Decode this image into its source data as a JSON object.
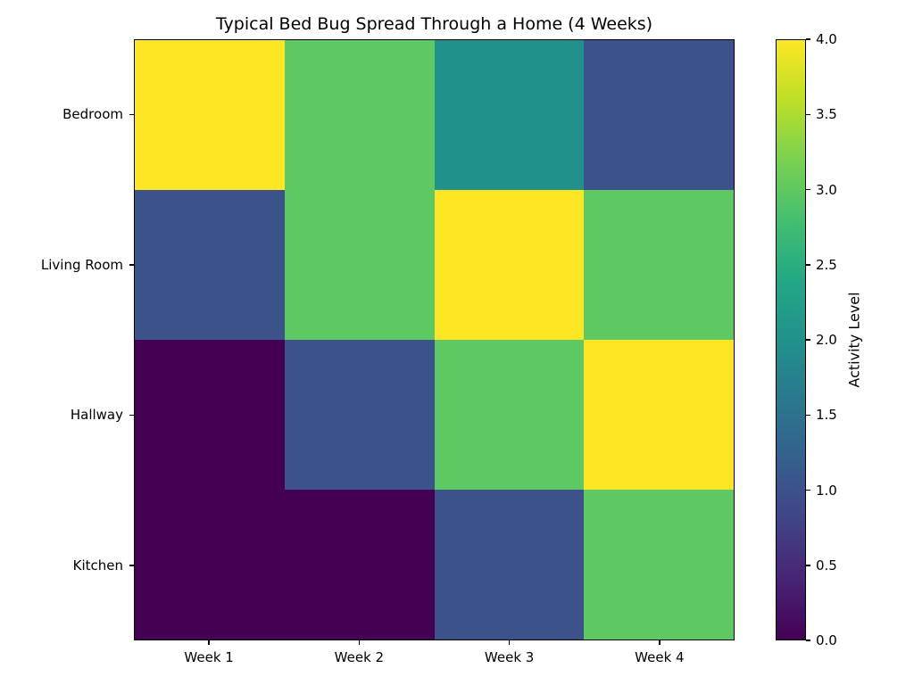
{
  "chart_data": {
    "type": "heatmap",
    "title": "Typical Bed Bug Spread Through a Home (4 Weeks)",
    "rows": [
      "Bedroom",
      "Living Room",
      "Hallway",
      "Kitchen"
    ],
    "columns": [
      "Week 1",
      "Week 2",
      "Week 3",
      "Week 4"
    ],
    "values": [
      [
        4,
        3,
        2,
        1
      ],
      [
        1,
        3,
        4,
        3
      ],
      [
        0,
        1,
        3,
        4
      ],
      [
        0,
        0,
        1,
        3
      ]
    ],
    "value_range": [
      0,
      4
    ],
    "colorbar": {
      "label": "Activity Level",
      "tick_labels_top_to_bottom": [
        "4.0",
        "3.5",
        "3.0",
        "2.5",
        "2.0",
        "1.5",
        "1.0",
        "0.5",
        "0.0"
      ]
    },
    "colormap": {
      "name": "viridis",
      "levels": {
        "0": "#440154",
        "1": "#3b528b",
        "2": "#21918c",
        "3": "#5ec962",
        "4": "#fde725"
      },
      "gradient_low_to_high": [
        "#440154",
        "#482475",
        "#414487",
        "#355f8d",
        "#2a788e",
        "#21918c",
        "#22a884",
        "#44bf70",
        "#7ad151",
        "#bddf26",
        "#fde725"
      ]
    },
    "layout_hints": {
      "grid": "off",
      "legend": "colorbar-right",
      "cell_borders": "none"
    }
  }
}
